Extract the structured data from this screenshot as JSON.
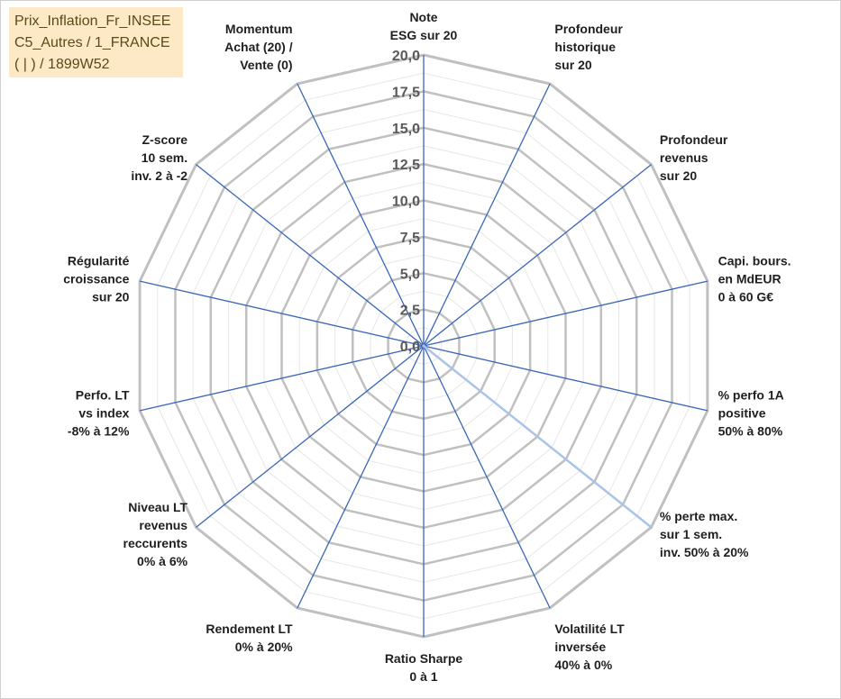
{
  "title_box": {
    "lines": [
      "Prix_Inflation_Fr_INSEE",
      "C5_Autres / 1_FRANCE",
      "( | ) / 1899W52"
    ]
  },
  "chart_data": {
    "type": "radar",
    "title": "",
    "rmin": 0,
    "rmax": 20,
    "ticks": [
      "0,0",
      "2,5",
      "5,0",
      "7,5",
      "10,0",
      "12,5",
      "15,0",
      "17,5",
      "20,0"
    ],
    "axes": [
      [
        "Note",
        "ESG sur 20"
      ],
      [
        "Profondeur",
        "historique",
        "sur 20"
      ],
      [
        "Profondeur",
        "revenus",
        "sur 20"
      ],
      [
        "Capi. bours.",
        "en MdEUR",
        "0 à 60 G€"
      ],
      [
        "% perfo 1A",
        "positive",
        "50% à 80%"
      ],
      [
        "% perte max.",
        "sur 1 sem.",
        "inv. 50% à 20%"
      ],
      [
        "Volatilité LT",
        "inversée",
        "40% à 0%"
      ],
      [
        "Ratio Sharpe",
        "0 à 1"
      ],
      [
        "Rendement LT",
        "0% à 20%"
      ],
      [
        "Niveau LT",
        "revenus",
        "reccurents",
        "0% à 6%"
      ],
      [
        "Perfo. LT",
        "vs index",
        "-8% à 12%"
      ],
      [
        "Régularité",
        "croissance",
        "sur 20"
      ],
      [
        "Z-score",
        "10 sem.",
        "inv. 2 à -2"
      ],
      [
        "Momentum",
        "Achat (20) /",
        "Vente (0)"
      ]
    ],
    "series": [
      {
        "values": [
          0,
          0,
          0,
          0,
          0,
          20,
          0,
          0,
          0,
          0,
          0,
          0,
          0,
          0
        ]
      }
    ],
    "grid": true,
    "legend": "none",
    "colors": {
      "grid": "#c0c0c0",
      "minor_grid": "#e6e6e6",
      "spoke": "#3a66b8",
      "series": "#a9c4e6"
    }
  }
}
